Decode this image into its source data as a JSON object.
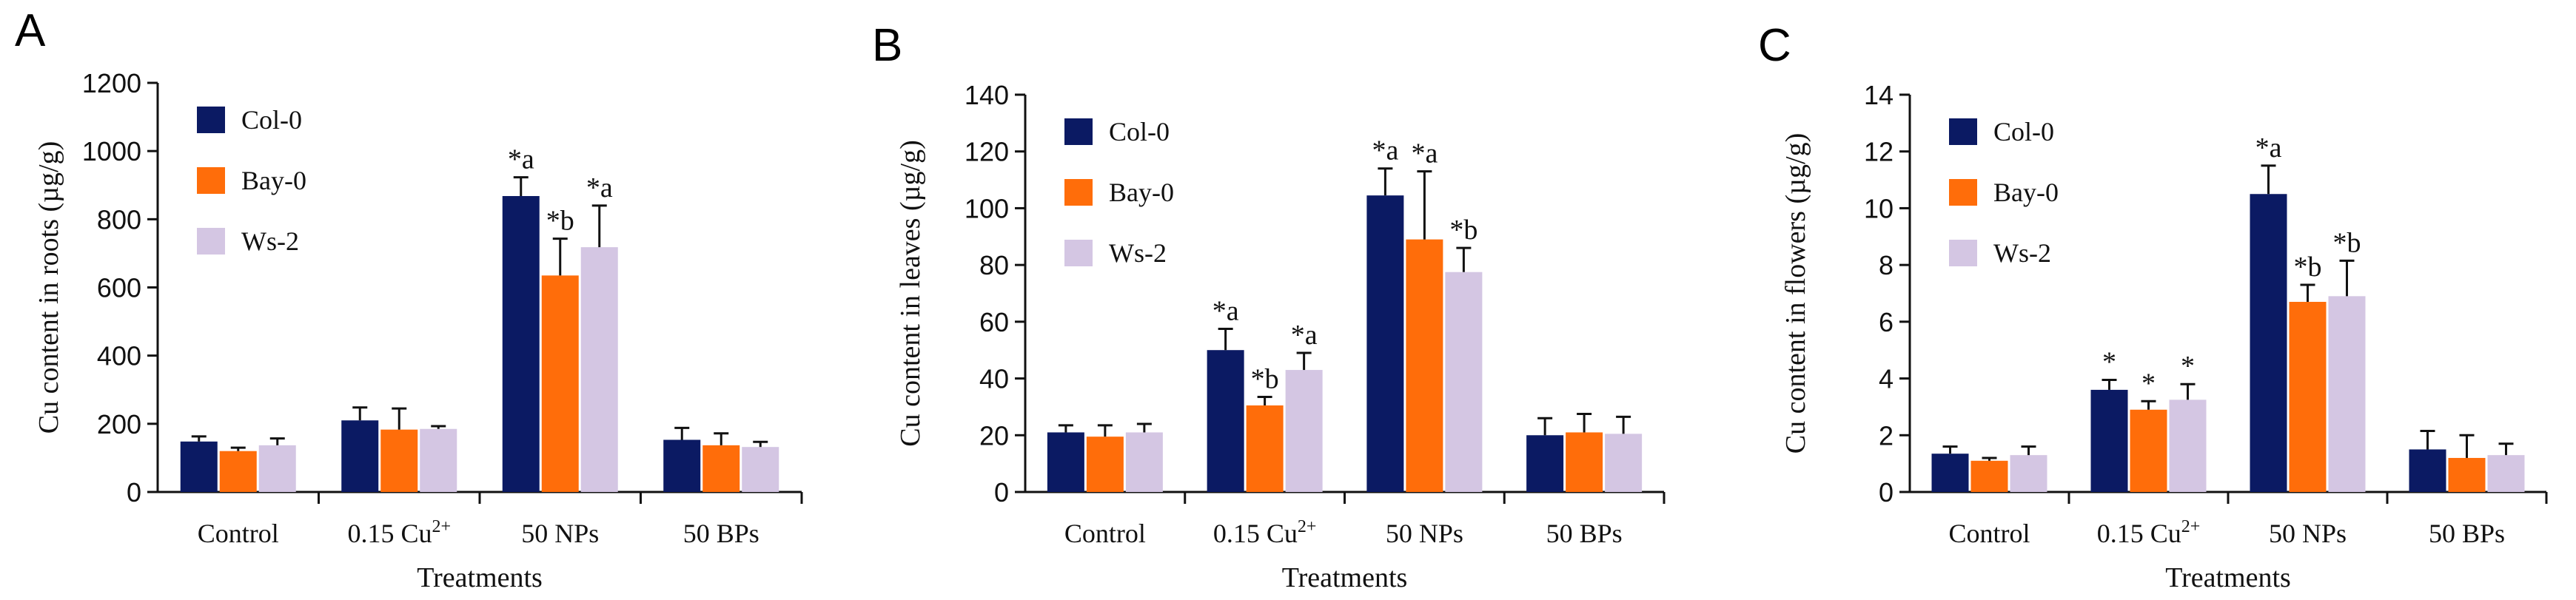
{
  "colors": {
    "series": [
      "#0b1a63",
      "#ff6d0a",
      "#d4c6e3"
    ],
    "axis": "#111111",
    "error_bar": "#111111"
  },
  "chart_data": [
    {
      "panel_label": "A",
      "type": "bar",
      "title": "",
      "xlabel": "Treatments",
      "ylabel": "Cu content in roots (µg/g)",
      "ylim": [
        0,
        1200
      ],
      "yticks": [
        0,
        200,
        400,
        600,
        800,
        1000,
        1200
      ],
      "categories": [
        {
          "main": "Control",
          "sup": ""
        },
        {
          "main": "0.15 Cu",
          "sup": "2+"
        },
        {
          "main": "50 NPs",
          "sup": ""
        },
        {
          "main": "50 BPs",
          "sup": ""
        }
      ],
      "legend": {
        "position": "top-left",
        "entries": [
          "Col-0",
          "Bay-0",
          "Ws-2"
        ]
      },
      "series": [
        {
          "name": "Col-0",
          "values": [
            148,
            210,
            868,
            153
          ],
          "errors": [
            15,
            38,
            55,
            35
          ],
          "labels": [
            "",
            "",
            "*a",
            ""
          ]
        },
        {
          "name": "Bay-0",
          "values": [
            120,
            183,
            635,
            137
          ],
          "errors": [
            10,
            62,
            108,
            35
          ],
          "labels": [
            "",
            "",
            "*b",
            ""
          ]
        },
        {
          "name": "Ws-2",
          "values": [
            137,
            185,
            718,
            132
          ],
          "errors": [
            20,
            8,
            122,
            15
          ],
          "labels": [
            "",
            "",
            "*a",
            ""
          ]
        }
      ]
    },
    {
      "panel_label": "B",
      "type": "bar",
      "title": "",
      "xlabel": "Treatments",
      "ylabel": "Cu content in leaves (µg/g)",
      "ylim": [
        0,
        140
      ],
      "yticks": [
        0,
        20,
        40,
        60,
        80,
        100,
        120,
        140
      ],
      "categories": [
        {
          "main": "Control",
          "sup": ""
        },
        {
          "main": "0.15 Cu",
          "sup": "2+"
        },
        {
          "main": "50 NPs",
          "sup": ""
        },
        {
          "main": "50 BPs",
          "sup": ""
        }
      ],
      "legend": {
        "position": "top-left",
        "entries": [
          "Col-0",
          "Bay-0",
          "Ws-2"
        ]
      },
      "series": [
        {
          "name": "Col-0",
          "values": [
            21,
            50,
            104.5,
            20
          ],
          "errors": [
            2.5,
            7.5,
            9.5,
            6
          ],
          "labels": [
            "",
            "*a",
            "*a",
            ""
          ]
        },
        {
          "name": "Bay-0",
          "values": [
            19.5,
            30.5,
            89,
            21
          ],
          "errors": [
            4,
            3,
            24,
            6.5
          ],
          "labels": [
            "",
            "*b",
            "*a",
            ""
          ]
        },
        {
          "name": "Ws-2",
          "values": [
            21,
            43,
            77.5,
            20.5
          ],
          "errors": [
            3,
            6,
            8.5,
            6
          ],
          "labels": [
            "",
            "*a",
            "*b",
            ""
          ]
        }
      ]
    },
    {
      "panel_label": "C",
      "type": "bar",
      "title": "",
      "xlabel": "Treatments",
      "ylabel": "Cu content in flowers (µg/g)",
      "ylim": [
        0,
        14
      ],
      "yticks": [
        0,
        2,
        4,
        6,
        8,
        10,
        12,
        14
      ],
      "categories": [
        {
          "main": "Control",
          "sup": ""
        },
        {
          "main": "0.15 Cu",
          "sup": "2+"
        },
        {
          "main": "50 NPs",
          "sup": ""
        },
        {
          "main": "50 BPs",
          "sup": ""
        }
      ],
      "legend": {
        "position": "top-left",
        "entries": [
          "Col-0",
          "Bay-0",
          "Ws-2"
        ]
      },
      "series": [
        {
          "name": "Col-0",
          "values": [
            1.35,
            3.6,
            10.5,
            1.5
          ],
          "errors": [
            0.25,
            0.35,
            1.0,
            0.65
          ],
          "labels": [
            "",
            "*",
            "*a",
            ""
          ]
        },
        {
          "name": "Bay-0",
          "values": [
            1.1,
            2.9,
            6.7,
            1.2
          ],
          "errors": [
            0.1,
            0.3,
            0.6,
            0.8
          ],
          "labels": [
            "",
            "*",
            "*b",
            ""
          ]
        },
        {
          "name": "Ws-2",
          "values": [
            1.3,
            3.25,
            6.9,
            1.3
          ],
          "errors": [
            0.3,
            0.55,
            1.25,
            0.4
          ],
          "labels": [
            "",
            "*",
            "*b",
            ""
          ]
        }
      ]
    }
  ]
}
